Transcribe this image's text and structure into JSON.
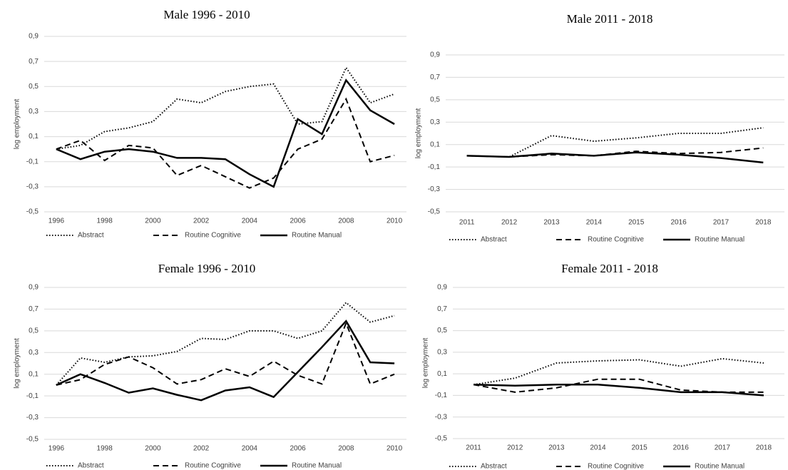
{
  "chart_data": [
    {
      "type": "line",
      "title": "Male 1996 - 2010",
      "y_label": "log employment",
      "categories": [
        "1996",
        null,
        "1998",
        null,
        "2000",
        null,
        "2002",
        null,
        "2004",
        null,
        "2006",
        null,
        "2008",
        null,
        "2010"
      ],
      "series": [
        {
          "name": "Abstract",
          "color": "#000000",
          "dash": "dotted",
          "values": [
            0,
            0.03,
            0.14,
            0.17,
            0.22,
            0.4,
            0.37,
            0.46,
            0.5,
            0.52,
            0.2,
            0.22,
            0.65,
            0.37,
            0.44
          ]
        },
        {
          "name": "Routine Cognitive",
          "color": "#000000",
          "dash": "dashed",
          "values": [
            0,
            0.07,
            -0.09,
            0.03,
            0.01,
            -0.21,
            -0.13,
            -0.22,
            -0.31,
            -0.23,
            0.0,
            0.08,
            0.4,
            -0.1,
            -0.05
          ]
        },
        {
          "name": "Routine Manual",
          "color": "#000000",
          "dash": "solid",
          "values": [
            0,
            -0.08,
            -0.02,
            0.0,
            -0.02,
            -0.07,
            -0.07,
            -0.08,
            -0.2,
            -0.3,
            0.24,
            0.12,
            0.55,
            0.31,
            0.2
          ]
        }
      ],
      "ylim": [
        -0.5,
        0.9
      ],
      "yticks": [
        {
          "value": -0.5,
          "label": "-0,5"
        },
        {
          "value": -0.3,
          "label": "-0,3"
        },
        {
          "value": -0.1,
          "label": "-0,1"
        },
        {
          "value": 0.1,
          "label": "0,1"
        },
        {
          "value": 0.3,
          "label": "0,3"
        },
        {
          "value": 0.5,
          "label": "0,5"
        },
        {
          "value": 0.7,
          "label": "0,7"
        },
        {
          "value": 0.9,
          "label": "0,9"
        }
      ],
      "grid": true,
      "legend": "bottom"
    },
    {
      "type": "line",
      "title": "Male 2011 - 2018",
      "y_label": "log employment",
      "categories": [
        "2011",
        "2012",
        "2013",
        "2014",
        "2015",
        "2016",
        "2017",
        "2018"
      ],
      "series": [
        {
          "name": "Abstract",
          "color": "#000000",
          "dash": "dotted",
          "values": [
            0,
            -0.01,
            0.18,
            0.13,
            0.16,
            0.2,
            0.2,
            0.25
          ]
        },
        {
          "name": "Routine Cognitive",
          "color": "#000000",
          "dash": "dashed",
          "values": [
            0,
            -0.01,
            0.01,
            0.0,
            0.04,
            0.02,
            0.03,
            0.07
          ]
        },
        {
          "name": "Routine Manual",
          "color": "#000000",
          "dash": "solid",
          "values": [
            0,
            -0.01,
            0.02,
            0.0,
            0.03,
            0.01,
            -0.02,
            -0.06
          ]
        }
      ],
      "ylim": [
        -0.5,
        0.9
      ],
      "yticks": [
        {
          "value": -0.5,
          "label": "-0,5"
        },
        {
          "value": -0.3,
          "label": "-0,3"
        },
        {
          "value": -0.1,
          "label": "-0,1"
        },
        {
          "value": 0.1,
          "label": "0,1"
        },
        {
          "value": 0.3,
          "label": "0,3"
        },
        {
          "value": 0.5,
          "label": "0,5"
        },
        {
          "value": 0.7,
          "label": "0,7"
        },
        {
          "value": 0.9,
          "label": "0,9"
        }
      ],
      "grid": true,
      "legend": "bottom"
    },
    {
      "type": "line",
      "title": "Female 1996 - 2010",
      "y_label": "log employment",
      "categories": [
        "1996",
        null,
        "1998",
        null,
        "2000",
        null,
        "2002",
        null,
        "2004",
        null,
        "2006",
        null,
        "2008",
        null,
        "2010"
      ],
      "series": [
        {
          "name": "Abstract",
          "color": "#000000",
          "dash": "dotted",
          "values": [
            0,
            0.25,
            0.21,
            0.26,
            0.27,
            0.31,
            0.43,
            0.42,
            0.5,
            0.5,
            0.43,
            0.5,
            0.76,
            0.58,
            0.64
          ]
        },
        {
          "name": "Routine Cognitive",
          "color": "#000000",
          "dash": "dashed",
          "values": [
            0,
            0.05,
            0.19,
            0.26,
            0.16,
            0.01,
            0.05,
            0.15,
            0.08,
            0.22,
            0.09,
            0.01,
            0.57,
            0.01,
            0.1
          ]
        },
        {
          "name": "Routine Manual",
          "color": "#000000",
          "dash": "solid",
          "values": [
            0,
            0.1,
            0.02,
            -0.07,
            -0.03,
            -0.09,
            -0.14,
            -0.05,
            -0.02,
            -0.11,
            0.12,
            0.35,
            0.59,
            0.21,
            0.2
          ]
        }
      ],
      "ylim": [
        -0.5,
        0.9
      ],
      "yticks": [
        {
          "value": -0.5,
          "label": "-0,5"
        },
        {
          "value": -0.3,
          "label": "-0,3"
        },
        {
          "value": -0.1,
          "label": "-0,1"
        },
        {
          "value": 0.1,
          "label": "0,1"
        },
        {
          "value": 0.3,
          "label": "0,3"
        },
        {
          "value": 0.5,
          "label": "0,5"
        },
        {
          "value": 0.7,
          "label": "0,7"
        },
        {
          "value": 0.9,
          "label": "0,9"
        }
      ],
      "grid": true,
      "legend": "bottom"
    },
    {
      "type": "line",
      "title": "Female 2011 - 2018",
      "y_label": "log employment",
      "categories": [
        "2011",
        "2012",
        "2013",
        "2014",
        "2015",
        "2016",
        "2017",
        "2018"
      ],
      "series": [
        {
          "name": "Abstract",
          "color": "#000000",
          "dash": "dotted",
          "values": [
            0,
            0.06,
            0.2,
            0.22,
            0.23,
            0.17,
            0.24,
            0.2
          ]
        },
        {
          "name": "Routine Cognitive",
          "color": "#000000",
          "dash": "dashed",
          "values": [
            0,
            -0.07,
            -0.03,
            0.05,
            0.05,
            -0.05,
            -0.07,
            -0.07
          ]
        },
        {
          "name": "Routine Manual",
          "color": "#000000",
          "dash": "solid",
          "values": [
            0,
            -0.01,
            0.0,
            0.0,
            -0.03,
            -0.07,
            -0.07,
            -0.1
          ]
        }
      ],
      "ylim": [
        -0.5,
        0.9
      ],
      "yticks": [
        {
          "value": -0.5,
          "label": "-0,5"
        },
        {
          "value": -0.3,
          "label": "-0,3"
        },
        {
          "value": -0.1,
          "label": "-0,1"
        },
        {
          "value": 0.1,
          "label": "0,1"
        },
        {
          "value": 0.3,
          "label": "0,3"
        },
        {
          "value": 0.5,
          "label": "0,5"
        },
        {
          "value": 0.7,
          "label": "0,7"
        },
        {
          "value": 0.9,
          "label": "0,9"
        }
      ],
      "grid": true,
      "legend": "bottom"
    }
  ]
}
